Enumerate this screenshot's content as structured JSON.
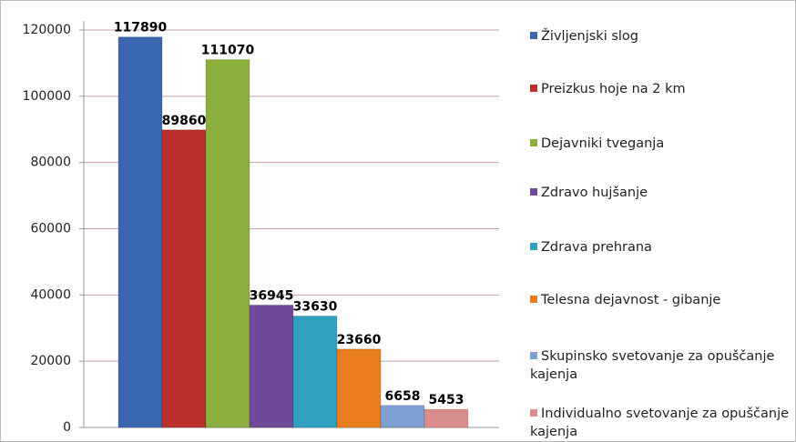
{
  "chart_data": {
    "type": "bar",
    "categories": [
      null
    ],
    "series": [
      {
        "name": "Življenjski slog",
        "color": "#3b67b1",
        "values": [
          117890
        ]
      },
      {
        "name": "Preizkus hoje na 2 km",
        "color": "#bb2f2c",
        "values": [
          89860
        ]
      },
      {
        "name": "Dejavniki tveganja",
        "color": "#8cae3d",
        "values": [
          111070
        ]
      },
      {
        "name": "Zdravo hujšanje",
        "color": "#6f4a98",
        "values": [
          36945
        ]
      },
      {
        "name": "Zdrava prehrana",
        "color": "#2fa2c2",
        "values": [
          33630
        ]
      },
      {
        "name": "Telesna dejavnost - gibanje",
        "color": "#ea7d1e",
        "values": [
          23660
        ]
      },
      {
        "name": "Skupinsko svetovanje za opuščanje kajenja",
        "color": "#7fa0d2",
        "values": [
          6658
        ]
      },
      {
        "name": "Individualno svetovanje za opuščanje kajenja",
        "color": "#d98e8c",
        "values": [
          5453
        ]
      }
    ],
    "ylim": [
      0,
      120000
    ],
    "yticks": [
      0,
      20000,
      40000,
      60000,
      80000,
      100000,
      120000
    ],
    "grid": true,
    "legend": "right"
  }
}
